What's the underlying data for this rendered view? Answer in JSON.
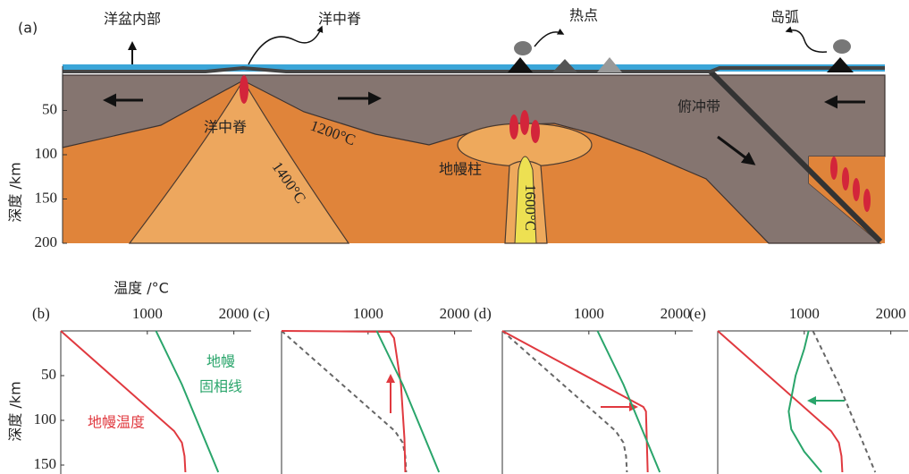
{
  "panel_a": {
    "label": "(a)",
    "top_labels": [
      "洋盆内部",
      "洋中脊",
      "热点",
      "岛弧"
    ],
    "inner_labels": [
      "洋中脊",
      "1200°C",
      "1400°C",
      "地幔柱",
      "1600°C",
      "俯冲带"
    ],
    "y_label": "深度 /km",
    "ylim": [
      0,
      200
    ],
    "yticks": [
      50,
      100,
      150,
      200
    ]
  },
  "chart_data": [
    {
      "type": "line",
      "label": "(b)",
      "x_label": "温度 /°C",
      "y_label": "深度 /km",
      "xlim": [
        0,
        2200
      ],
      "xticks": [
        1000,
        2000
      ],
      "ylim": [
        0,
        160
      ],
      "yticks": [
        50,
        100,
        150
      ],
      "annotations": [
        "地幔",
        "固相线",
        "地幔温度"
      ],
      "series": [
        {
          "color": "#e0393f",
          "x": [
            0,
            1310,
            1400,
            1430,
            1440
          ],
          "values": [
            0,
            112,
            125,
            140,
            158
          ]
        },
        {
          "color": "#2aa56b",
          "x": [
            1100,
            1250,
            1400,
            1550,
            1700,
            1820
          ],
          "values": [
            0,
            30,
            60,
            95,
            130,
            158
          ]
        }
      ]
    },
    {
      "type": "line",
      "label": "(c)",
      "xlim": [
        0,
        2200
      ],
      "xticks": [
        1000,
        2000
      ],
      "ylim": [
        0,
        160
      ],
      "series": [
        {
          "color": "#666666",
          "dashed": true,
          "x": [
            0,
            1310,
            1400,
            1430,
            1440
          ],
          "values": [
            0,
            112,
            125,
            140,
            158
          ]
        },
        {
          "color": "#e0393f",
          "x": [
            0,
            1250,
            1300,
            1380,
            1420,
            1430
          ],
          "values": [
            0,
            1,
            8,
            60,
            120,
            158
          ]
        },
        {
          "color": "#2aa56b",
          "x": [
            1100,
            1250,
            1400,
            1550,
            1700,
            1820
          ],
          "values": [
            0,
            30,
            60,
            95,
            130,
            158
          ]
        }
      ]
    },
    {
      "type": "line",
      "label": "(d)",
      "xlim": [
        0,
        2200
      ],
      "xticks": [
        1000,
        2000
      ],
      "ylim": [
        0,
        160
      ],
      "series": [
        {
          "color": "#666666",
          "dashed": true,
          "x": [
            0,
            1310,
            1400,
            1430,
            1440
          ],
          "values": [
            0,
            112,
            125,
            140,
            158
          ]
        },
        {
          "color": "#e0393f",
          "x": [
            0,
            1630,
            1660,
            1680
          ],
          "values": [
            0,
            85,
            90,
            158
          ]
        },
        {
          "color": "#2aa56b",
          "x": [
            1100,
            1250,
            1400,
            1550,
            1700,
            1820
          ],
          "values": [
            0,
            30,
            60,
            95,
            130,
            158
          ]
        }
      ]
    },
    {
      "type": "line",
      "label": "(e)",
      "xlim": [
        0,
        2200
      ],
      "xticks": [
        1000,
        2000
      ],
      "ylim": [
        0,
        160
      ],
      "series": [
        {
          "color": "#666666",
          "dashed": true,
          "x": [
            1100,
            1250,
            1400,
            1550,
            1700,
            1820
          ],
          "values": [
            0,
            30,
            60,
            95,
            130,
            158
          ]
        },
        {
          "color": "#e0393f",
          "x": [
            0,
            1310,
            1400,
            1430,
            1440
          ],
          "values": [
            0,
            112,
            125,
            140,
            158
          ]
        },
        {
          "color": "#2aa56b",
          "x": [
            1050,
            1000,
            900,
            820,
            850,
            1000,
            1200
          ],
          "values": [
            0,
            20,
            50,
            90,
            110,
            135,
            158
          ]
        }
      ]
    }
  ]
}
